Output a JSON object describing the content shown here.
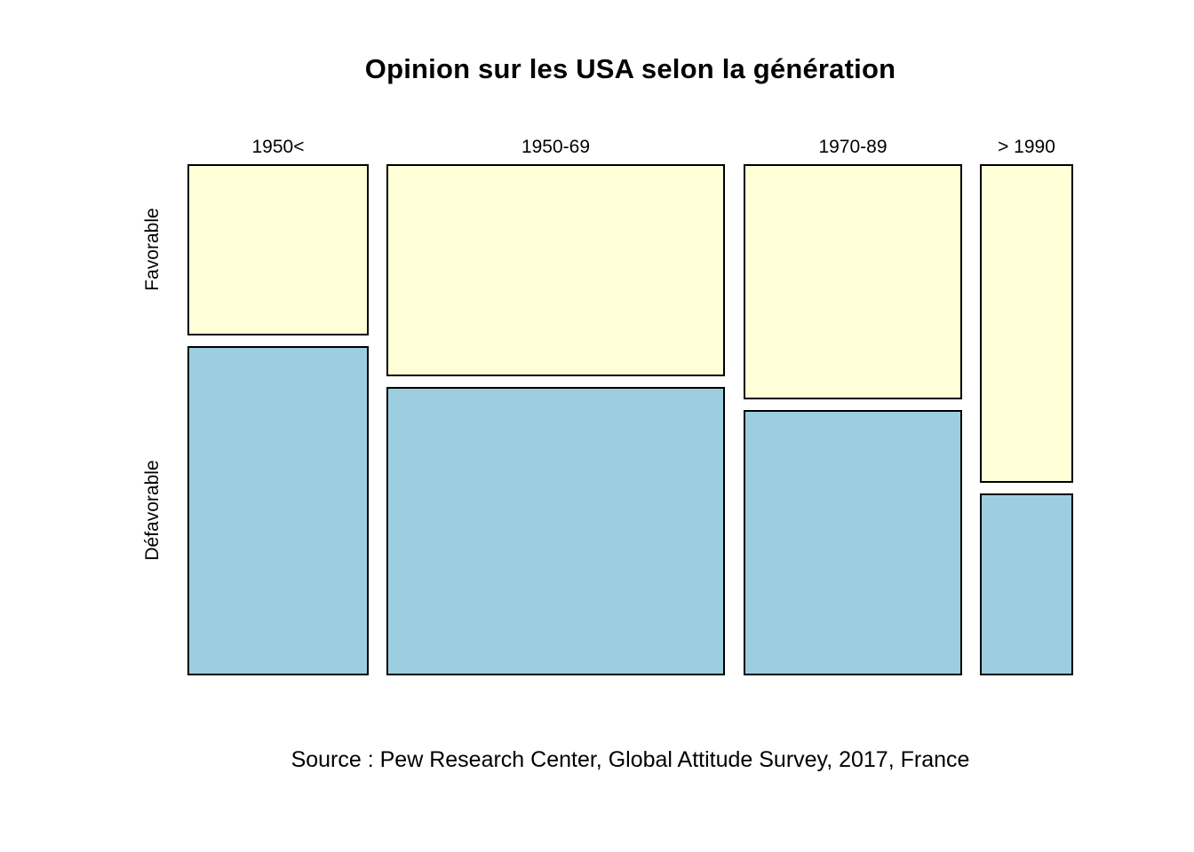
{
  "chart_data": {
    "type": "mosaic",
    "title": "Opinion sur les USA selon la génération",
    "caption": "Source : Pew Research Center, Global Attitude Survey, 2017, France",
    "x_categories": [
      "1950<",
      "1950-69",
      "1970-89",
      "> 1990"
    ],
    "y_categories": [
      "Favorable",
      "Défavorable"
    ],
    "columns": [
      {
        "label": "1950<",
        "width_share": 0.218,
        "favorable_share": 0.342,
        "defavorable_share": 0.658
      },
      {
        "label": "1950-69",
        "width_share": 0.407,
        "favorable_share": 0.423,
        "defavorable_share": 0.577
      },
      {
        "label": "1970-89",
        "width_share": 0.263,
        "favorable_share": 0.47,
        "defavorable_share": 0.53
      },
      {
        "label": "> 1990",
        "width_share": 0.112,
        "favorable_share": 0.637,
        "defavorable_share": 0.363
      }
    ],
    "colors": {
      "favorable": "#FFFFD8",
      "defavorable": "#9DCDE1",
      "border": "#000000",
      "background": "#FFFFFF",
      "text": "#000000"
    },
    "legend_position": "none",
    "grid": false
  }
}
